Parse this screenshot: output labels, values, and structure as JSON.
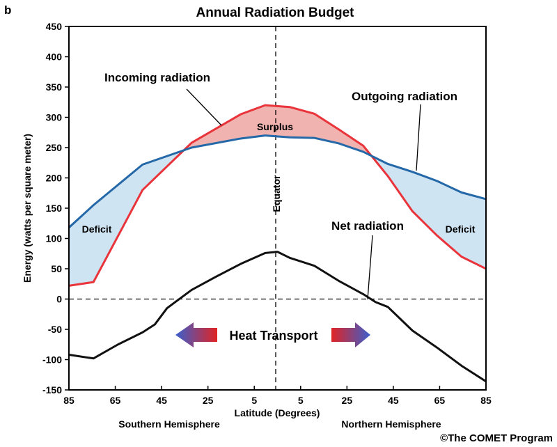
{
  "panel_letter": "b",
  "credit": "©The COMET Program",
  "colors": {
    "incoming": "#e8343a",
    "outgoing": "#2468a8",
    "net": "#111111",
    "surplus_fill": "#f0b3b0",
    "deficit_fill": "#cfe4f3",
    "arrow_blue": "#3a5fcd",
    "arrow_red": "#e02424"
  },
  "chart_data": {
    "type": "line",
    "title": "Annual Radiation Budget",
    "xlabel": "Latitude (Degrees)",
    "ylabel": "Energy (watts per square meter)",
    "ylim": [
      -150,
      450
    ],
    "xlim": [
      -85,
      85
    ],
    "yticks": [
      -150,
      -100,
      -50,
      0,
      50,
      100,
      150,
      200,
      250,
      300,
      350,
      400,
      450
    ],
    "xticks": [
      {
        "value": -85,
        "label": "85"
      },
      {
        "value": -65,
        "label": "65"
      },
      {
        "value": -45,
        "label": "45"
      },
      {
        "value": -25,
        "label": "25"
      },
      {
        "value": -5,
        "label": "5"
      },
      {
        "value": 5,
        "label": "5"
      },
      {
        "value": 25,
        "label": "25"
      },
      {
        "value": 45,
        "label": "45"
      },
      {
        "value": 65,
        "label": "65"
      },
      {
        "value": 85,
        "label": "85"
      }
    ],
    "hemisphere_labels": {
      "south": "Southern Hemisphere",
      "north": "Northern Hemisphere"
    },
    "equator_label": "Equator",
    "series": [
      {
        "name": "Incoming radiation",
        "x": [
          -85,
          -75,
          -55,
          -35,
          -15,
          -5,
          5,
          15,
          25,
          35,
          45,
          55,
          65,
          75,
          85
        ],
        "y": [
          22,
          28,
          180,
          258,
          305,
          320,
          317,
          306,
          280,
          253,
          203,
          145,
          105,
          70,
          50
        ]
      },
      {
        "name": "Outgoing radiation",
        "x": [
          -85,
          -75,
          -55,
          -35,
          -15,
          -5,
          5,
          15,
          25,
          35,
          45,
          55,
          65,
          75,
          85
        ],
        "y": [
          118,
          155,
          222,
          250,
          265,
          270,
          267,
          266,
          257,
          243,
          223,
          210,
          195,
          176,
          165
        ]
      },
      {
        "name": "Net radiation",
        "x": [
          -85,
          -75,
          -65,
          -55,
          -50,
          -45,
          -35,
          -25,
          -15,
          -5,
          0,
          5,
          15,
          25,
          35,
          40,
          45,
          55,
          65,
          75,
          85
        ],
        "y": [
          -92,
          -98,
          -75,
          -55,
          -42,
          -15,
          15,
          37,
          58,
          76,
          78,
          68,
          55,
          30,
          8,
          -5,
          -13,
          -52,
          -80,
          -110,
          -136
        ]
      }
    ],
    "annotations": {
      "incoming": "Incoming radiation",
      "outgoing": "Outgoing radiation",
      "net": "Net radiation",
      "surplus": "Surplus",
      "deficit_left": "Deficit",
      "deficit_right": "Deficit",
      "heat_transport": "Heat Transport"
    }
  }
}
